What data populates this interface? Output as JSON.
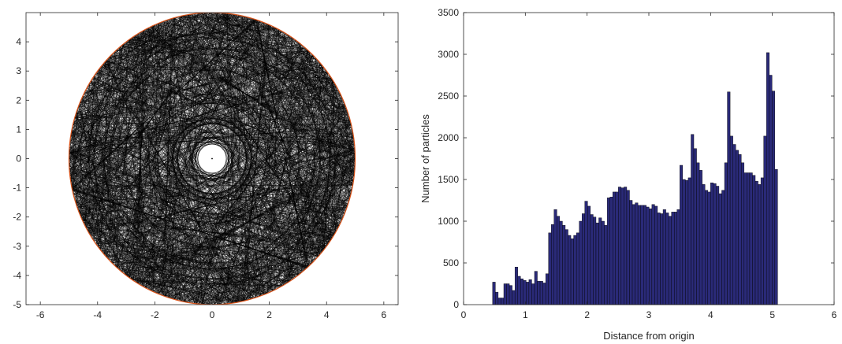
{
  "chart_data": [
    {
      "type": "scatter",
      "title": "",
      "xlabel": "",
      "ylabel": "",
      "xlim": [
        -6.5,
        6.5
      ],
      "ylim": [
        -5,
        5
      ],
      "x_ticks": [
        "-6",
        "-4",
        "-2",
        "0",
        "2",
        "4",
        "6"
      ],
      "y_ticks": [
        "-5",
        "-4",
        "-3",
        "-2",
        "-1",
        "0",
        "1",
        "2",
        "3",
        "4"
      ],
      "grid": false,
      "description_series": [
        {
          "kind": "boundary-circle",
          "center": [
            0,
            0
          ],
          "radius": 5,
          "color": "#d95319"
        },
        {
          "kind": "inner-circle",
          "center": [
            0,
            0
          ],
          "radius": 0.5,
          "color": "#000000"
        },
        {
          "kind": "particle-trajectories",
          "r_min": 0.5,
          "r_max": 5,
          "color": "#000000"
        }
      ]
    },
    {
      "type": "bar",
      "title": "",
      "xlabel": "Distance from origin",
      "ylabel": "Number of particles",
      "xlim": [
        0,
        6
      ],
      "ylim": [
        0,
        3500
      ],
      "x_ticks": [
        "0",
        "1",
        "2",
        "3",
        "4",
        "5",
        "6"
      ],
      "y_ticks": [
        "0",
        "500",
        "1000",
        "1500",
        "2000",
        "2500",
        "3000",
        "3500"
      ],
      "grid": false,
      "bar_color": "#2a2a78",
      "bin_start": 0.47,
      "bin_width": 0.04525,
      "values": [
        270,
        150,
        80,
        80,
        250,
        250,
        230,
        170,
        450,
        340,
        310,
        290,
        270,
        300,
        250,
        400,
        280,
        280,
        260,
        370,
        860,
        960,
        1140,
        1060,
        1000,
        950,
        900,
        830,
        790,
        830,
        860,
        1000,
        1090,
        1240,
        1180,
        1080,
        1050,
        980,
        1040,
        1000,
        950,
        1280,
        1290,
        1350,
        1350,
        1410,
        1400,
        1410,
        1370,
        1250,
        1200,
        1220,
        1190,
        1190,
        1190,
        1170,
        1150,
        1200,
        1180,
        1100,
        1090,
        1140,
        1100,
        1060,
        1110,
        1110,
        1140,
        1670,
        1500,
        1490,
        1520,
        2040,
        1870,
        1700,
        1610,
        1440,
        1370,
        1350,
        1460,
        1450,
        1420,
        1330,
        1370,
        1700,
        2550,
        2020,
        1920,
        1850,
        1800,
        1700,
        1580,
        1580,
        1580,
        1550,
        1480,
        1440,
        1520,
        2020,
        3020,
        2750,
        2560,
        1620
      ]
    }
  ]
}
